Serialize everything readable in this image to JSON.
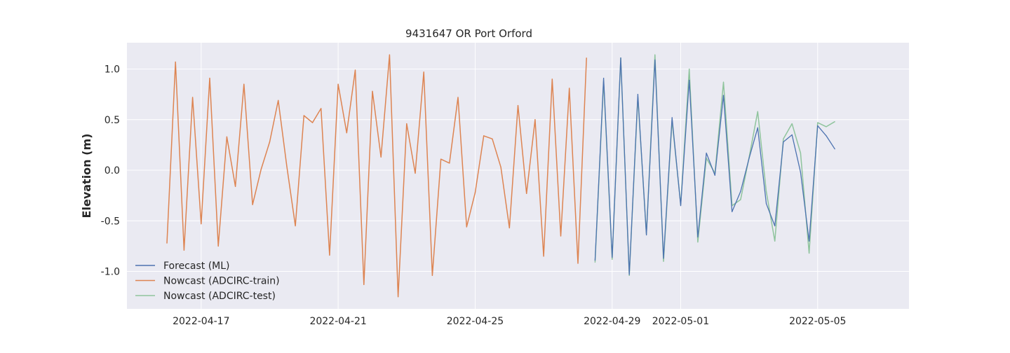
{
  "chart_data": {
    "type": "line",
    "title": "9431647 OR Port Orford",
    "xlabel": "",
    "ylabel": "Elevation (m)",
    "x_axis": {
      "type": "date",
      "range": [
        "2022-04-14T20:00",
        "2022-05-07T16:00"
      ],
      "ticks": [
        "2022-04-17",
        "2022-04-21",
        "2022-04-25",
        "2022-04-29",
        "2022-05-01",
        "2022-05-05"
      ]
    },
    "y_axis": {
      "range": [
        -1.37,
        1.26
      ],
      "ticks": [
        "-1.0",
        "-0.5",
        "0.0",
        "0.5",
        "1.0"
      ]
    },
    "grid": true,
    "legend_position": "bottom-left",
    "colors": {
      "background": "#eaeaf2",
      "grid": "#ffffff",
      "forecast": "#4c72b0",
      "train": "#dd8452",
      "test": "#8fc49d"
    },
    "series": [
      {
        "name": "Forecast (ML)",
        "color": "#4c72b0",
        "points": [
          [
            "2022-04-28T12:00",
            -0.89
          ],
          [
            "2022-04-28T18:00",
            0.91
          ],
          [
            "2022-04-29T00:00",
            -0.86
          ],
          [
            "2022-04-29T06:00",
            1.11
          ],
          [
            "2022-04-29T12:00",
            -1.03
          ],
          [
            "2022-04-29T18:00",
            0.75
          ],
          [
            "2022-04-30T00:00",
            -0.64
          ],
          [
            "2022-04-30T06:00",
            1.09
          ],
          [
            "2022-04-30T12:00",
            -0.87
          ],
          [
            "2022-04-30T18:00",
            0.52
          ],
          [
            "2022-05-01T00:00",
            -0.35
          ],
          [
            "2022-05-01T06:00",
            0.89
          ],
          [
            "2022-05-01T12:00",
            -0.66
          ],
          [
            "2022-05-01T18:00",
            0.17
          ],
          [
            "2022-05-02T00:00",
            -0.05
          ],
          [
            "2022-05-02T06:00",
            0.74
          ],
          [
            "2022-05-02T12:00",
            -0.41
          ],
          [
            "2022-05-02T18:00",
            -0.21
          ],
          [
            "2022-05-03T00:00",
            0.12
          ],
          [
            "2022-05-03T06:00",
            0.42
          ],
          [
            "2022-05-03T12:00",
            -0.33
          ],
          [
            "2022-05-03T18:00",
            -0.55
          ],
          [
            "2022-05-04T00:00",
            0.28
          ],
          [
            "2022-05-04T06:00",
            0.35
          ],
          [
            "2022-05-04T12:00",
            -0.02
          ],
          [
            "2022-05-04T18:00",
            -0.7
          ],
          [
            "2022-05-05T00:00",
            0.44
          ],
          [
            "2022-05-05T06:00",
            0.34
          ],
          [
            "2022-05-05T12:00",
            0.21
          ]
        ]
      },
      {
        "name": "Nowcast (ADCIRC-train)",
        "color": "#dd8452",
        "points": [
          [
            "2022-04-16T00:00",
            -0.72
          ],
          [
            "2022-04-16T06:00",
            1.07
          ],
          [
            "2022-04-16T12:00",
            -0.79
          ],
          [
            "2022-04-16T18:00",
            0.72
          ],
          [
            "2022-04-17T00:00",
            -0.53
          ],
          [
            "2022-04-17T06:00",
            0.91
          ],
          [
            "2022-04-17T12:00",
            -0.75
          ],
          [
            "2022-04-17T18:00",
            0.33
          ],
          [
            "2022-04-18T00:00",
            -0.16
          ],
          [
            "2022-04-18T06:00",
            0.85
          ],
          [
            "2022-04-18T12:00",
            -0.34
          ],
          [
            "2022-04-18T18:00",
            0.01
          ],
          [
            "2022-04-19T00:00",
            0.28
          ],
          [
            "2022-04-19T06:00",
            0.69
          ],
          [
            "2022-04-19T12:00",
            0.04
          ],
          [
            "2022-04-19T18:00",
            -0.55
          ],
          [
            "2022-04-20T00:00",
            0.54
          ],
          [
            "2022-04-20T06:00",
            0.47
          ],
          [
            "2022-04-20T12:00",
            0.61
          ],
          [
            "2022-04-20T18:00",
            -0.84
          ],
          [
            "2022-04-21T00:00",
            0.85
          ],
          [
            "2022-04-21T06:00",
            0.37
          ],
          [
            "2022-04-21T12:00",
            0.99
          ],
          [
            "2022-04-21T18:00",
            -1.13
          ],
          [
            "2022-04-22T00:00",
            0.78
          ],
          [
            "2022-04-22T06:00",
            0.13
          ],
          [
            "2022-04-22T12:00",
            1.14
          ],
          [
            "2022-04-22T18:00",
            -1.25
          ],
          [
            "2022-04-23T00:00",
            0.46
          ],
          [
            "2022-04-23T06:00",
            -0.03
          ],
          [
            "2022-04-23T12:00",
            0.97
          ],
          [
            "2022-04-23T18:00",
            -1.04
          ],
          [
            "2022-04-24T00:00",
            0.11
          ],
          [
            "2022-04-24T06:00",
            0.07
          ],
          [
            "2022-04-24T12:00",
            0.72
          ],
          [
            "2022-04-24T18:00",
            -0.56
          ],
          [
            "2022-04-25T00:00",
            -0.22
          ],
          [
            "2022-04-25T06:00",
            0.34
          ],
          [
            "2022-04-25T12:00",
            0.31
          ],
          [
            "2022-04-25T18:00",
            0.03
          ],
          [
            "2022-04-26T00:00",
            -0.57
          ],
          [
            "2022-04-26T06:00",
            0.64
          ],
          [
            "2022-04-26T12:00",
            -0.23
          ],
          [
            "2022-04-26T18:00",
            0.5
          ],
          [
            "2022-04-27T00:00",
            -0.85
          ],
          [
            "2022-04-27T06:00",
            0.9
          ],
          [
            "2022-04-27T12:00",
            -0.65
          ],
          [
            "2022-04-27T18:00",
            0.81
          ],
          [
            "2022-04-28T00:00",
            -0.92
          ],
          [
            "2022-04-28T06:00",
            1.11
          ]
        ]
      },
      {
        "name": "Nowcast (ADCIRC-test)",
        "color": "#8fc49d",
        "points": [
          [
            "2022-04-28T12:00",
            -0.91
          ],
          [
            "2022-04-28T18:00",
            0.88
          ],
          [
            "2022-04-29T00:00",
            -0.88
          ],
          [
            "2022-04-29T06:00",
            1.11
          ],
          [
            "2022-04-29T12:00",
            -1.04
          ],
          [
            "2022-04-29T18:00",
            0.72
          ],
          [
            "2022-04-30T00:00",
            -0.63
          ],
          [
            "2022-04-30T06:00",
            1.14
          ],
          [
            "2022-04-30T12:00",
            -0.9
          ],
          [
            "2022-04-30T18:00",
            0.49
          ],
          [
            "2022-05-01T00:00",
            -0.34
          ],
          [
            "2022-05-01T06:00",
            1.0
          ],
          [
            "2022-05-01T12:00",
            -0.71
          ],
          [
            "2022-05-01T18:00",
            0.12
          ],
          [
            "2022-05-02T00:00",
            -0.03
          ],
          [
            "2022-05-02T06:00",
            0.87
          ],
          [
            "2022-05-02T12:00",
            -0.35
          ],
          [
            "2022-05-02T18:00",
            -0.29
          ],
          [
            "2022-05-03T00:00",
            0.13
          ],
          [
            "2022-05-03T06:00",
            0.58
          ],
          [
            "2022-05-03T12:00",
            -0.21
          ],
          [
            "2022-05-03T18:00",
            -0.7
          ],
          [
            "2022-05-04T00:00",
            0.31
          ],
          [
            "2022-05-04T06:00",
            0.46
          ],
          [
            "2022-05-04T12:00",
            0.17
          ],
          [
            "2022-05-04T18:00",
            -0.82
          ],
          [
            "2022-05-05T00:00",
            0.47
          ],
          [
            "2022-05-05T06:00",
            0.43
          ],
          [
            "2022-05-05T12:00",
            0.48
          ]
        ]
      }
    ],
    "legend": [
      "Forecast (ML)",
      "Nowcast (ADCIRC-train)",
      "Nowcast (ADCIRC-test)"
    ]
  }
}
